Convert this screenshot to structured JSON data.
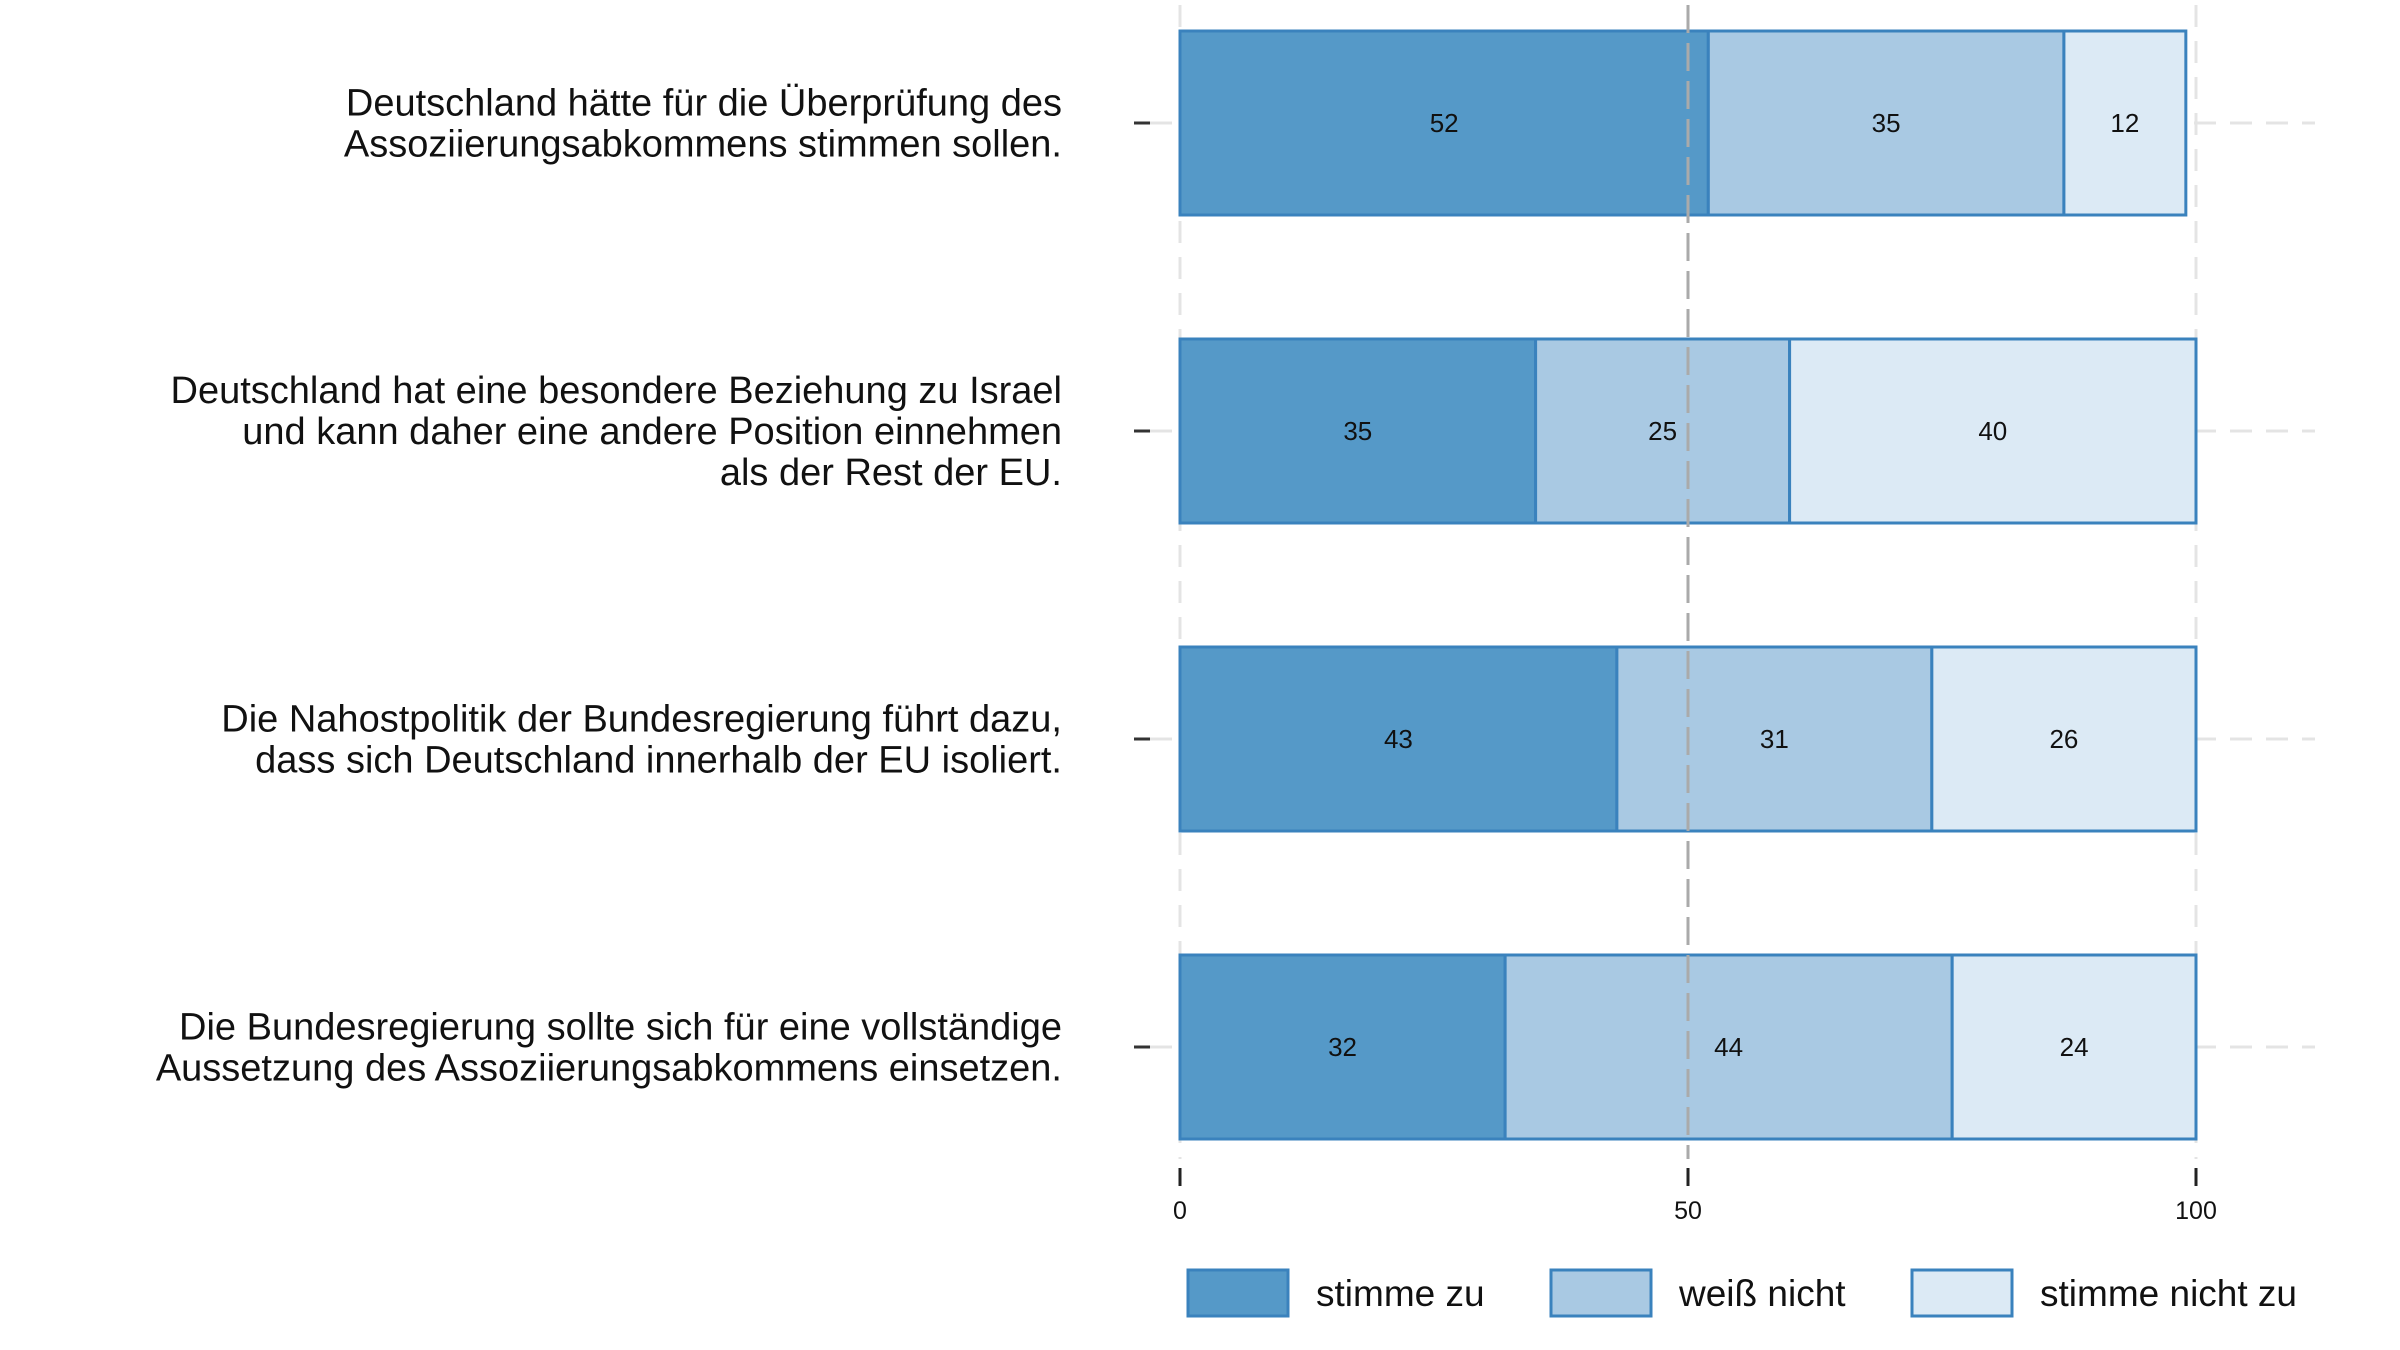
{
  "chart_data": {
    "type": "bar",
    "orientation": "horizontal",
    "stacked": true,
    "categories": [
      [
        "Deutschland hätte für die Überprüfung des",
        "Assoziierungsabkommens stimmen sollen."
      ],
      [
        "Deutschland hat eine besondere Beziehung zu Israel",
        "und kann daher eine andere Position einnehmen",
        "als der Rest der EU."
      ],
      [
        "Die Nahostpolitik der Bundesregierung führt dazu,",
        "dass sich Deutschland innerhalb der EU isoliert."
      ],
      [
        "Die Bundesregierung sollte sich für eine vollständige",
        "Aussetzung des Assoziierungsabkommens einsetzen."
      ]
    ],
    "series": [
      {
        "name": "stimme zu",
        "values": [
          52,
          35,
          43,
          32
        ],
        "color": "#5599c8"
      },
      {
        "name": "weiß nicht",
        "values": [
          35,
          25,
          31,
          44
        ],
        "color": "#a9c9e3"
      },
      {
        "name": "stimme nicht zu",
        "values": [
          12,
          40,
          26,
          24
        ],
        "color": "#dceaf5"
      }
    ],
    "border_color": "#3a82bd",
    "xlim": [
      0,
      100
    ],
    "xticks": [
      "0",
      "50",
      "100"
    ],
    "reference_line": 50,
    "grid": true,
    "legend_position": "bottom",
    "title": "",
    "xlabel": "",
    "ylabel": ""
  }
}
